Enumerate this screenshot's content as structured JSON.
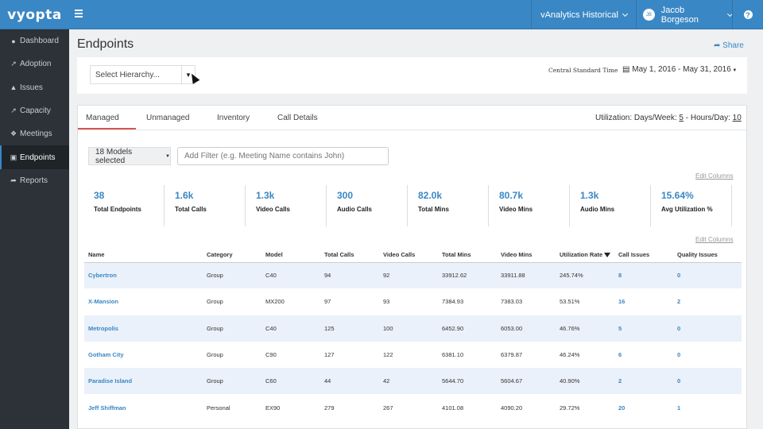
{
  "app": {
    "logo": "vyopta"
  },
  "topbar": {
    "analytics_menu": "vAnalytics Historical",
    "user_initials": "JB",
    "user_name": "Jacob Borgeson",
    "help": "?"
  },
  "sidebar": {
    "items": [
      {
        "label": "Dashboard",
        "icon": "dashboard-icon"
      },
      {
        "label": "Adoption",
        "icon": "line-chart-icon"
      },
      {
        "label": "Issues",
        "icon": "warning-icon"
      },
      {
        "label": "Capacity",
        "icon": "area-chart-icon"
      },
      {
        "label": "Meetings",
        "icon": "people-icon"
      },
      {
        "label": "Endpoints",
        "icon": "endpoint-icon"
      },
      {
        "label": "Reports",
        "icon": "share-icon"
      }
    ],
    "active": "Endpoints"
  },
  "page": {
    "title": "Endpoints",
    "share": "Share"
  },
  "filters": {
    "hierarchy_placeholder": "Select Hierarchy...",
    "timezone": "Central Standard Time",
    "date_range": "May 1, 2016 - May 31, 2016"
  },
  "tabs": [
    "Managed",
    "Unmanaged",
    "Inventory",
    "Call Details"
  ],
  "utilization": {
    "prefix": "Utilization: Days/Week:",
    "days": "5",
    "mid": "- Hours/Day:",
    "hours": "10"
  },
  "models_button": "18 Models selected",
  "filter_placeholder": "Add Filter (e.g. Meeting Name contains John)",
  "edit_columns": "Edit Columns",
  "stats": [
    {
      "value": "38",
      "label": "Total Endpoints"
    },
    {
      "value": "1.6k",
      "label": "Total Calls"
    },
    {
      "value": "1.3k",
      "label": "Video Calls"
    },
    {
      "value": "300",
      "label": "Audio Calls"
    },
    {
      "value": "82.0k",
      "label": "Total Mins"
    },
    {
      "value": "80.7k",
      "label": "Video Mins"
    },
    {
      "value": "1.3k",
      "label": "Audio Mins"
    },
    {
      "value": "15.64%",
      "label": "Avg Utilization %"
    }
  ],
  "table": {
    "headers": [
      "Name",
      "Category",
      "Model",
      "Total Calls",
      "Video Calls",
      "Total Mins",
      "Video Mins",
      "Utilization Rate",
      "Call Issues",
      "Quality Issues"
    ],
    "rows": [
      [
        "Cybertron",
        "Group",
        "C40",
        "94",
        "92",
        "33912.62",
        "33911.88",
        "245.74%",
        "8",
        "0"
      ],
      [
        "X-Mansion",
        "Group",
        "MX200",
        "97",
        "93",
        "7384.93",
        "7383.03",
        "53.51%",
        "16",
        "2"
      ],
      [
        "Metropolis",
        "Group",
        "C40",
        "125",
        "100",
        "6452.90",
        "6053.00",
        "46.76%",
        "5",
        "0"
      ],
      [
        "Gotham City",
        "Group",
        "C90",
        "127",
        "122",
        "6381.10",
        "6379.87",
        "46.24%",
        "6",
        "0"
      ],
      [
        "Paradise Island",
        "Group",
        "C60",
        "44",
        "42",
        "5644.70",
        "5604.67",
        "40.90%",
        "2",
        "0"
      ],
      [
        "Jeff Shiffman",
        "Personal",
        "EX90",
        "279",
        "267",
        "4101.08",
        "4090.20",
        "29.72%",
        "20",
        "1"
      ]
    ]
  }
}
